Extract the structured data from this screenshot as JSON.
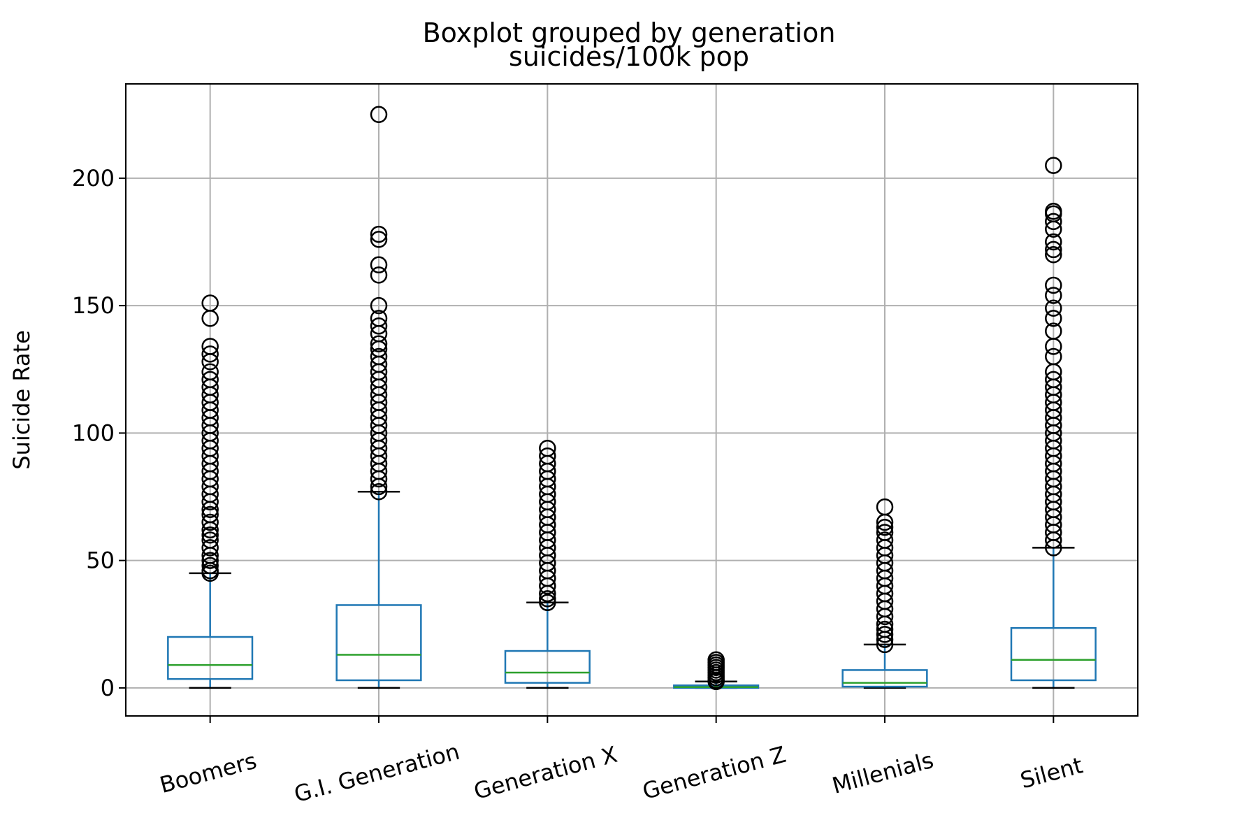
{
  "chart_data": {
    "type": "boxplot",
    "suptitle": "Boxplot grouped by generation",
    "title": "suicides/100k pop",
    "xlabel": "",
    "ylabel": "Suicide Rate",
    "ylim": [
      -11,
      237
    ],
    "yticks": [
      0,
      50,
      100,
      150,
      200
    ],
    "grid": true,
    "categories": [
      "Boomers",
      "G.I. Generation",
      "Generation X",
      "Generation Z",
      "Millenials",
      "Silent"
    ],
    "boxes": [
      {
        "name": "Boomers",
        "whisker_low": 0,
        "q1": 3.5,
        "median": 9,
        "q3": 20,
        "whisker_high": 45,
        "outliers": [
          45,
          46,
          48,
          50,
          52,
          55,
          58,
          60,
          62,
          65,
          68,
          70,
          73,
          76,
          79,
          82,
          85,
          88,
          91,
          94,
          97,
          100,
          103,
          106,
          109,
          112,
          115,
          118,
          121,
          124,
          128,
          131,
          134,
          145,
          151
        ]
      },
      {
        "name": "G.I. Generation",
        "whisker_low": 0,
        "q1": 3,
        "median": 13,
        "q3": 32.5,
        "whisker_high": 77,
        "outliers": [
          77,
          79,
          82,
          85,
          88,
          91,
          94,
          97,
          100,
          103,
          106,
          109,
          112,
          115,
          118,
          121,
          124,
          127,
          130,
          133,
          135,
          139,
          142,
          145,
          150,
          162,
          166,
          176,
          178,
          225
        ]
      },
      {
        "name": "Generation X",
        "whisker_low": 0,
        "q1": 2,
        "median": 6,
        "q3": 14.5,
        "whisker_high": 33.5,
        "outliers": [
          33.5,
          35,
          37,
          40,
          43,
          46,
          49,
          52,
          55,
          58,
          61,
          64,
          67,
          70,
          73,
          76,
          79,
          82,
          85,
          88,
          91,
          94
        ]
      },
      {
        "name": "Generation Z",
        "whisker_low": 0,
        "q1": 0,
        "median": 0.3,
        "q3": 1,
        "whisker_high": 2.5,
        "outliers": [
          2.5,
          3,
          4,
          5,
          6,
          7,
          8,
          9,
          10,
          11
        ]
      },
      {
        "name": "Millenials",
        "whisker_low": 0,
        "q1": 0.5,
        "median": 2,
        "q3": 7,
        "whisker_high": 17,
        "outliers": [
          17,
          19,
          21,
          23,
          25,
          28,
          31,
          34,
          37,
          40,
          43,
          46,
          49,
          52,
          55,
          58,
          61,
          63,
          65,
          71
        ]
      },
      {
        "name": "Silent",
        "whisker_low": 0,
        "q1": 3,
        "median": 11,
        "q3": 23.5,
        "whisker_high": 55,
        "outliers": [
          55,
          58,
          61,
          64,
          67,
          70,
          73,
          76,
          79,
          82,
          85,
          88,
          91,
          94,
          97,
          100,
          103,
          106,
          109,
          112,
          115,
          118,
          121,
          124,
          130,
          134,
          140,
          145,
          149,
          154,
          158,
          170,
          172,
          175,
          180,
          183,
          186,
          187,
          205
        ]
      }
    ],
    "colors": {
      "box": "#1f77b4",
      "median": "#2ca02c",
      "whisker_cap": "#000000",
      "outlier": "#000000",
      "grid": "#b0b0b0"
    }
  }
}
